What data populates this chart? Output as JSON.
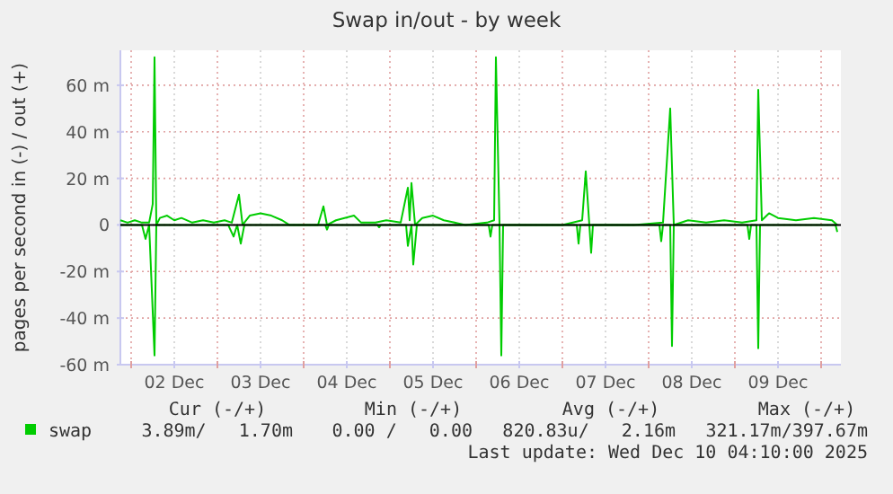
{
  "chart_data": {
    "type": "line",
    "title": "Swap in/out - by week",
    "ylabel": "pages per second in (-) / out (+)",
    "xlim": [
      "2025-12-01T21:00",
      "2025-12-10T05:30"
    ],
    "xticks": [
      {
        "value": "2025-12-02T00:00",
        "label": null
      },
      {
        "value": "2025-12-02T12:00",
        "label": "02 Dec"
      },
      {
        "value": "2025-12-03T00:00",
        "label": null
      },
      {
        "value": "2025-12-03T12:00",
        "label": "03 Dec"
      },
      {
        "value": "2025-12-04T00:00",
        "label": null
      },
      {
        "value": "2025-12-04T12:00",
        "label": "04 Dec"
      },
      {
        "value": "2025-12-05T00:00",
        "label": null
      },
      {
        "value": "2025-12-05T12:00",
        "label": "05 Dec"
      },
      {
        "value": "2025-12-06T00:00",
        "label": null
      },
      {
        "value": "2025-12-06T12:00",
        "label": "06 Dec"
      },
      {
        "value": "2025-12-07T00:00",
        "label": null
      },
      {
        "value": "2025-12-07T12:00",
        "label": "07 Dec"
      },
      {
        "value": "2025-12-08T00:00",
        "label": null
      },
      {
        "value": "2025-12-08T12:00",
        "label": "08 Dec"
      },
      {
        "value": "2025-12-09T00:00",
        "label": null
      },
      {
        "value": "2025-12-09T12:00",
        "label": "09 Dec"
      },
      {
        "value": "2025-12-10T00:00",
        "label": null
      }
    ],
    "ylim": [
      -60,
      75
    ],
    "yticks": [
      {
        "value": -60,
        "label": "-60 m"
      },
      {
        "value": -40,
        "label": "-40 m"
      },
      {
        "value": -20,
        "label": "-20 m"
      },
      0,
      {
        "value": 20,
        "label": "20 m"
      },
      {
        "value": 40,
        "label": "40 m"
      },
      {
        "value": 60,
        "label": "60 m"
      }
    ],
    "grid": true,
    "legend": "bottom",
    "marker": "none",
    "line_style": "solid",
    "ref_lines": [
      {
        "axis": "y",
        "value": 0,
        "color": "#000000"
      }
    ],
    "series": [
      {
        "name": "swap",
        "color": "#00cc00",
        "x": [
          "2025-12-01T21:00",
          "2025-12-01T23:00",
          "2025-12-02T01:00",
          "2025-12-02T03:00",
          "2025-12-02T05:00",
          "2025-12-02T06:00",
          "2025-12-02T06:30",
          "2025-12-02T07:00",
          "2025-12-02T08:00",
          "2025-12-02T10:00",
          "2025-12-02T12:00",
          "2025-12-02T14:00",
          "2025-12-02T17:00",
          "2025-12-02T20:00",
          "2025-12-02T23:00",
          "2025-12-03T02:00",
          "2025-12-03T04:00",
          "2025-12-03T06:00",
          "2025-12-03T07:00",
          "2025-12-03T09:00",
          "2025-12-03T12:00",
          "2025-12-03T15:00",
          "2025-12-03T18:00",
          "2025-12-03T20:00",
          "2025-12-04T04:00",
          "2025-12-04T05:30",
          "2025-12-04T06:30",
          "2025-12-04T09:00",
          "2025-12-04T14:00",
          "2025-12-04T16:00",
          "2025-12-04T20:00",
          "2025-12-04T23:00",
          "2025-12-05T03:00",
          "2025-12-05T05:00",
          "2025-12-05T05:30",
          "2025-12-05T06:00",
          "2025-12-05T07:00",
          "2025-12-05T09:00",
          "2025-12-05T12:00",
          "2025-12-05T15:00",
          "2025-12-05T18:00",
          "2025-12-05T21:00",
          "2025-12-06T03:00",
          "2025-12-06T05:00",
          "2025-12-06T05:30",
          "2025-12-06T06:30",
          "2025-12-06T14:00",
          "2025-12-07T00:00",
          "2025-12-07T05:30",
          "2025-12-07T06:30",
          "2025-12-07T07:30",
          "2025-12-07T20:00",
          "2025-12-08T04:00",
          "2025-12-08T06:00",
          "2025-12-08T07:00",
          "2025-12-08T11:00",
          "2025-12-08T16:00",
          "2025-12-08T21:00",
          "2025-12-09T02:00",
          "2025-12-09T06:00",
          "2025-12-09T06:30",
          "2025-12-09T07:30",
          "2025-12-09T09:30",
          "2025-12-09T12:00",
          "2025-12-09T17:00",
          "2025-12-09T22:00",
          "2025-12-10T03:00",
          "2025-12-10T04:30"
        ],
        "values": [
          2,
          1,
          2,
          1,
          1,
          9,
          72,
          0,
          3,
          4,
          2,
          3,
          1,
          2,
          1,
          2,
          1,
          13,
          0,
          4,
          5,
          4,
          2,
          0,
          0,
          8,
          0,
          2,
          4,
          1,
          1,
          2,
          1,
          16,
          2,
          18,
          0,
          3,
          4,
          2,
          1,
          0,
          1,
          2,
          72,
          0,
          0,
          0,
          2,
          23,
          0,
          0,
          1,
          50,
          0,
          2,
          1,
          2,
          1,
          2,
          58,
          2,
          5,
          3,
          2,
          3,
          2,
          0
        ]
      },
      {
        "color": "#00cc00",
        "x": [
          "2025-12-01T21:00",
          "2025-12-02T03:00",
          "2025-12-02T04:00",
          "2025-12-02T05:00",
          "2025-12-02T06:30",
          "2025-12-02T07:00",
          "2025-12-03T03:00",
          "2025-12-03T04:30",
          "2025-12-03T05:30",
          "2025-12-03T06:30",
          "2025-12-03T07:30",
          "2025-12-04T06:00",
          "2025-12-04T06:30",
          "2025-12-04T07:00",
          "2025-12-04T20:30",
          "2025-12-04T21:00",
          "2025-12-04T21:30",
          "2025-12-05T04:30",
          "2025-12-05T05:00",
          "2025-12-05T06:00",
          "2025-12-05T06:30",
          "2025-12-05T07:30",
          "2025-12-06T03:30",
          "2025-12-06T04:00",
          "2025-12-06T04:30",
          "2025-12-06T06:30",
          "2025-12-06T07:00",
          "2025-12-06T07:30",
          "2025-12-07T04:00",
          "2025-12-07T04:30",
          "2025-12-07T05:00",
          "2025-12-07T07:30",
          "2025-12-07T08:00",
          "2025-12-07T08:30",
          "2025-12-08T03:00",
          "2025-12-08T03:30",
          "2025-12-08T04:00",
          "2025-12-08T06:00",
          "2025-12-08T06:30",
          "2025-12-08T07:00",
          "2025-12-09T03:30",
          "2025-12-09T04:00",
          "2025-12-09T04:30",
          "2025-12-09T06:00",
          "2025-12-09T06:30",
          "2025-12-09T07:00",
          "2025-12-10T04:00",
          "2025-12-10T04:30"
        ],
        "values": [
          0,
          0,
          -6,
          0,
          -56,
          0,
          0,
          -5,
          0,
          -8,
          0,
          0,
          -2,
          0,
          0,
          -1,
          0,
          0,
          -9,
          0,
          -17,
          0,
          0,
          -5,
          0,
          0,
          -56,
          0,
          0,
          -8,
          0,
          0,
          -12,
          0,
          0,
          -7,
          0,
          0,
          -52,
          0,
          0,
          -6,
          0,
          0,
          -53,
          0,
          0,
          -3
        ]
      }
    ],
    "annotations": [
      "Cur (-/+)",
      "Min (-/+)",
      "Avg (-/+)",
      "Max (-/+)",
      "3.89m/   1.70m",
      "0.00 /   0.00",
      "820.83u/   2.16m",
      "321.17m/397.67m",
      "Last update: Wed Dec 10 04:10:00 2025"
    ]
  }
}
